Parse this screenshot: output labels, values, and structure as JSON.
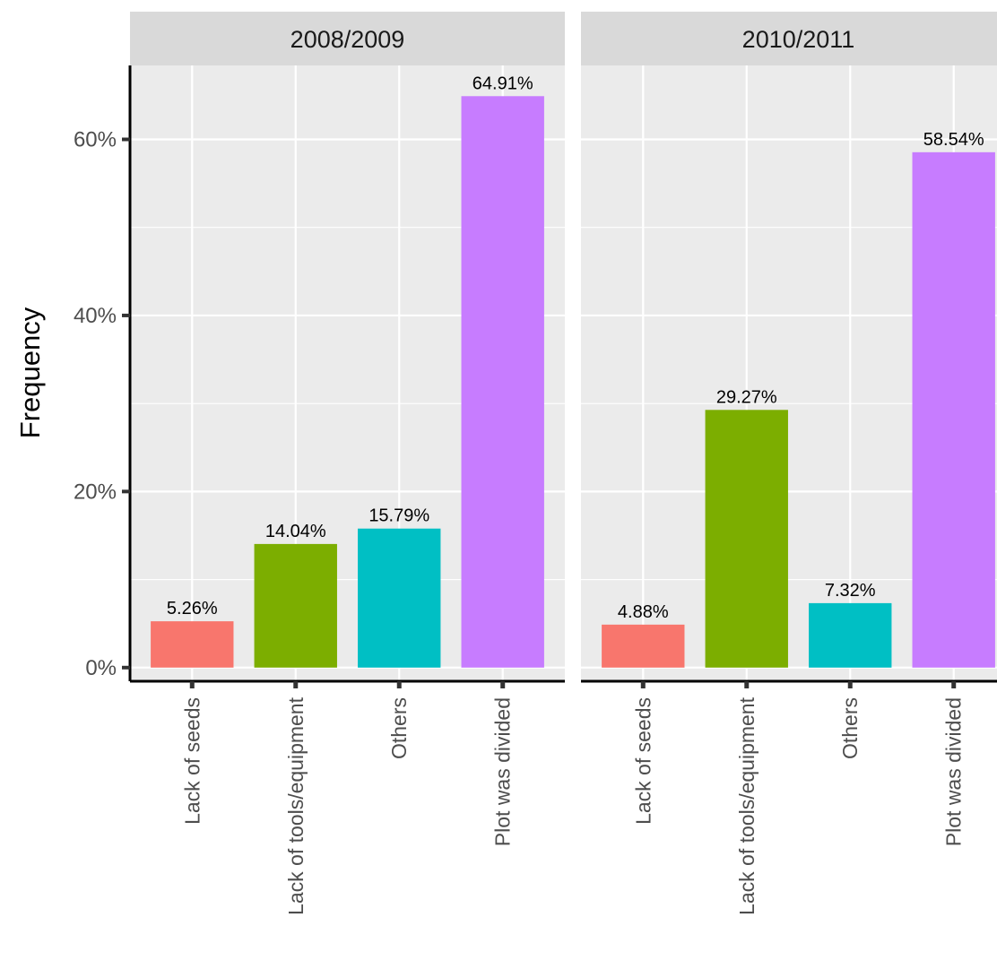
{
  "chart_data": {
    "type": "bar",
    "ylabel": "Frequency",
    "xlabel": "",
    "ylim": [
      -0.0155,
      0.684
    ],
    "y_ticks": [
      {
        "value": 0,
        "label": "0%"
      },
      {
        "value": 0.2,
        "label": "20%"
      },
      {
        "value": 0.4,
        "label": "40%"
      },
      {
        "value": 0.6,
        "label": "60%"
      }
    ],
    "grid": true,
    "facets": [
      {
        "strip_label": "2008/2009",
        "categories": [
          "Lack of seeds",
          "Lack of tools/equipment",
          "Others",
          "Plot was divided"
        ],
        "values": [
          0.0526,
          0.1404,
          0.1579,
          0.6491
        ],
        "value_labels": [
          "5.26%",
          "14.04%",
          "15.79%",
          "64.91%"
        ]
      },
      {
        "strip_label": "2010/2011",
        "categories": [
          "Lack of seeds",
          "Lack of tools/equipment",
          "Others",
          "Plot was divided"
        ],
        "values": [
          0.0488,
          0.2927,
          0.0732,
          0.5854
        ],
        "value_labels": [
          "4.88%",
          "29.27%",
          "7.32%",
          "58.54%"
        ]
      }
    ],
    "colors": [
      "#F8766D",
      "#7CAE00",
      "#00BFC4",
      "#C77CFF"
    ],
    "panel_background": "#EBEBEB",
    "strip_background": "#D9D9D9",
    "grid_color": "#FFFFFF",
    "legend": "none"
  }
}
